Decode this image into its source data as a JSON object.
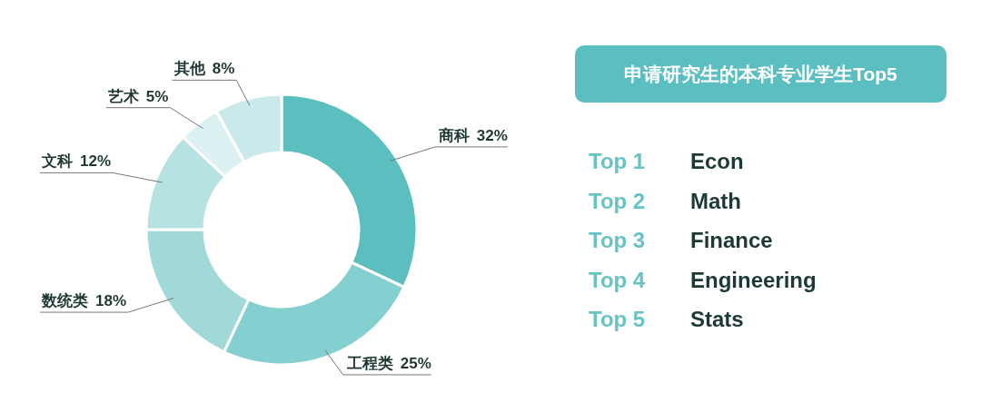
{
  "chart_data": [
    {
      "type": "donut",
      "categories": [
        "商科",
        "工程类",
        "数统类",
        "文科",
        "艺术",
        "其他"
      ],
      "values": [
        32,
        25,
        18,
        12,
        5,
        8
      ],
      "value_labels": [
        "32%",
        "25%",
        "18%",
        "12%",
        "5%",
        "8%"
      ],
      "colors": [
        "#5bbfc0",
        "#84cfcf",
        "#a1d9d9",
        "#b6e2e2",
        "#dcf1f1",
        "#cae9ea"
      ]
    },
    {
      "type": "other",
      "title": "申请研究生的本科专业学生Top5",
      "annotations": [
        "Top 1",
        "Econ",
        "Top 2",
        "Math",
        "Top 3",
        "Finance",
        "Top 4",
        "Engineering",
        "Top 5",
        "Stats"
      ]
    }
  ]
}
